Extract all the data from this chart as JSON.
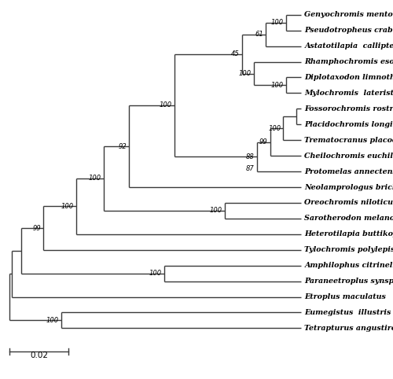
{
  "taxa": [
    "Genyochromis mento",
    "Pseudotropheus crabro",
    "Astatotilapia  calliptera",
    "Rhamphochromis esox",
    "Diplotaxodon limnothrissa",
    "Mylochromis  lateristriga",
    "Fossorochromis rostratus",
    "Placidochromis longimanus",
    "Trematocranus placodon",
    "Cheilochromis euchilus",
    "Protomelas annectens",
    "Neolamprologus brichardi",
    "Oreochromis niloticus",
    "Sarotherodon melanotheron",
    "Heterotilapia buttikoferi",
    "Tylochromis polylepis",
    "Amphilophus citrinellus",
    "Paraneetroplus synspilus",
    "Etroplus maculatus",
    "Eumegistus  illustris",
    "Tetrapturus angustirostris"
  ],
  "tip_y": [
    1,
    2,
    3,
    4,
    5,
    6,
    7,
    8,
    9,
    10,
    11,
    12,
    13,
    14,
    15,
    16,
    17,
    18,
    19,
    20,
    21
  ],
  "figsize": [
    5.0,
    4.82
  ],
  "dpi": 100,
  "line_color": "#3a3a3a",
  "line_width": 1.0,
  "font_size_taxa": 6.8,
  "font_size_bootstrap": 6.0,
  "font_size_scalebar": 7.5
}
